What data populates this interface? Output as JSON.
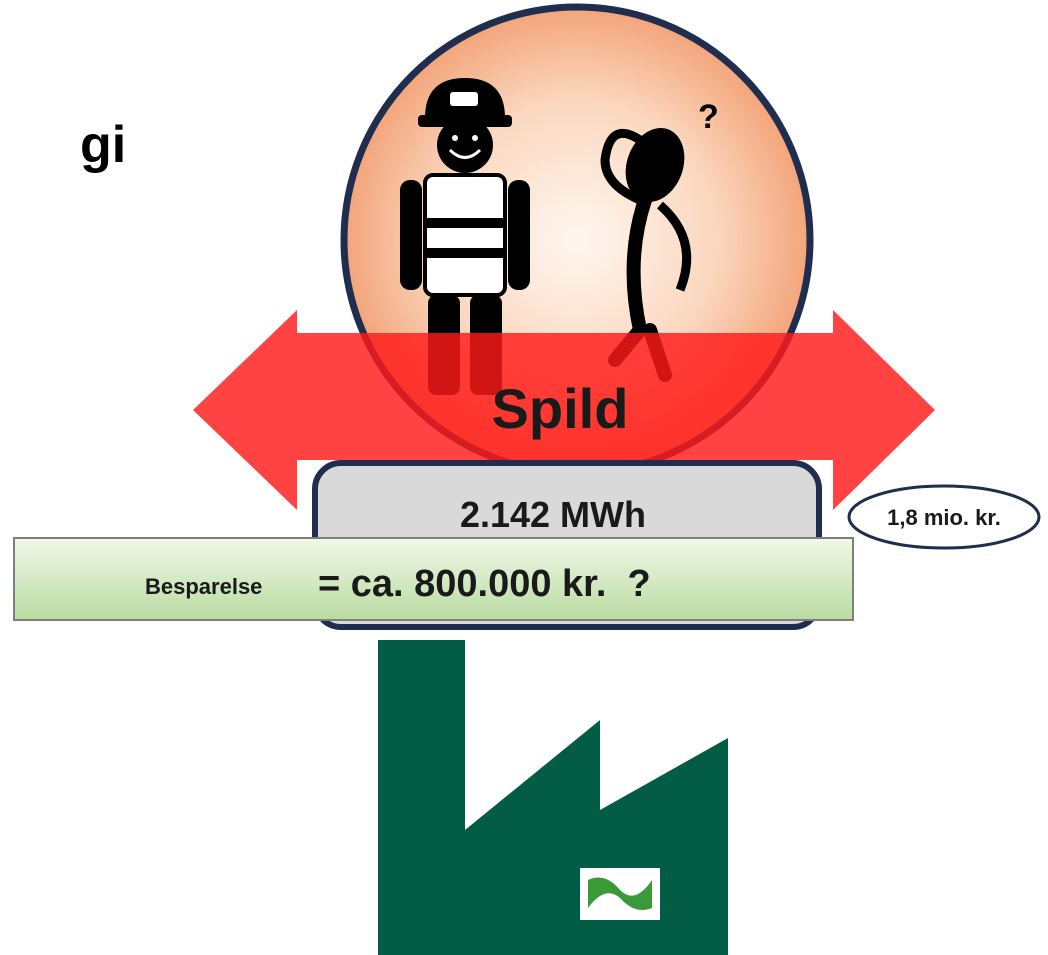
{
  "title": "gi",
  "arrow_label": "Spild",
  "energy": "2.142 MWh",
  "cost": "1,8 mio. kr.",
  "savings": {
    "label": "Besparelse",
    "value": "= ca. 800.000 kr.  ?"
  },
  "icon_mark": "?"
}
